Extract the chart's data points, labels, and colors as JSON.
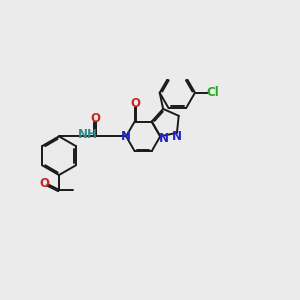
{
  "bg_color": "#ebebeb",
  "bond_color": "#1a1a1a",
  "n_color": "#2222cc",
  "o_color": "#cc2222",
  "cl_color": "#22aa22",
  "nh_color": "#338888",
  "lw": 1.4,
  "fs": 8.5,
  "dbo": 0.055,
  "xlim": [
    0,
    10.5
  ],
  "ylim": [
    2.5,
    7.5
  ]
}
